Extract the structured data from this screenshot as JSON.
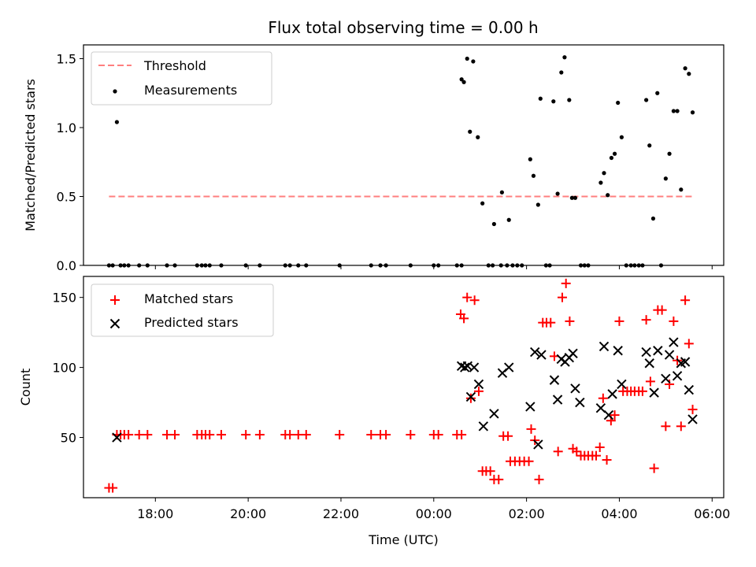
{
  "chart_data": {
    "title": "Flux total observing time = 0.00 h",
    "panels": [
      {
        "type": "scatter",
        "ylabel": "Matched/Predicted stars",
        "ylim": [
          0,
          1.6
        ],
        "yticks": [
          0,
          0.5,
          1.0,
          1.5
        ],
        "ytick_labels": [
          "0.0",
          "0.5",
          "1.0",
          "1.5"
        ],
        "legend_position": "upper-left",
        "threshold": {
          "name": "Threshold",
          "value": 0.5,
          "x_range": [
            17.0,
            29.6
          ],
          "color": "#ff7f7f",
          "style": "dashed"
        },
        "series": [
          {
            "name": "Measurements",
            "color": "#000000",
            "marker": "dot",
            "points": [
              [
                17.0,
                0
              ],
              [
                17.08,
                0
              ],
              [
                17.17,
                1.04
              ],
              [
                17.25,
                0
              ],
              [
                17.33,
                0
              ],
              [
                17.42,
                0
              ],
              [
                17.65,
                0
              ],
              [
                17.83,
                0
              ],
              [
                18.25,
                0
              ],
              [
                18.42,
                0
              ],
              [
                18.9,
                0
              ],
              [
                19.0,
                0
              ],
              [
                19.08,
                0
              ],
              [
                19.17,
                0
              ],
              [
                19.42,
                0
              ],
              [
                19.95,
                0
              ],
              [
                20.25,
                0
              ],
              [
                20.8,
                0
              ],
              [
                20.9,
                0
              ],
              [
                21.08,
                0
              ],
              [
                21.25,
                0
              ],
              [
                21.97,
                0
              ],
              [
                22.65,
                0
              ],
              [
                22.85,
                0
              ],
              [
                22.97,
                0
              ],
              [
                23.5,
                0
              ],
              [
                24.0,
                0
              ],
              [
                24.1,
                0
              ],
              [
                24.5,
                0
              ],
              [
                24.6,
                0
              ],
              [
                24.6,
                1.35
              ],
              [
                24.65,
                1.33
              ],
              [
                24.72,
                1.5
              ],
              [
                24.78,
                0.97
              ],
              [
                24.85,
                1.48
              ],
              [
                24.95,
                0.93
              ],
              [
                25.05,
                0.45
              ],
              [
                25.18,
                0
              ],
              [
                25.27,
                0
              ],
              [
                25.3,
                0.3
              ],
              [
                25.45,
                0
              ],
              [
                25.47,
                0.53
              ],
              [
                25.58,
                0
              ],
              [
                25.62,
                0.33
              ],
              [
                25.7,
                0
              ],
              [
                25.8,
                0
              ],
              [
                25.9,
                0
              ],
              [
                26.08,
                0.77
              ],
              [
                26.15,
                0.65
              ],
              [
                26.25,
                0.44
              ],
              [
                26.3,
                1.21
              ],
              [
                26.42,
                0
              ],
              [
                26.5,
                0
              ],
              [
                26.58,
                1.19
              ],
              [
                26.67,
                0.52
              ],
              [
                26.75,
                1.4
              ],
              [
                26.82,
                1.51
              ],
              [
                26.92,
                1.2
              ],
              [
                26.98,
                0.49
              ],
              [
                27.05,
                0.49
              ],
              [
                27.17,
                0
              ],
              [
                27.25,
                0
              ],
              [
                27.33,
                0
              ],
              [
                27.6,
                0.6
              ],
              [
                27.67,
                0.67
              ],
              [
                27.75,
                0.51
              ],
              [
                27.83,
                0.78
              ],
              [
                27.9,
                0.81
              ],
              [
                27.97,
                1.18
              ],
              [
                28.05,
                0.93
              ],
              [
                28.15,
                0
              ],
              [
                28.25,
                0
              ],
              [
                28.33,
                0
              ],
              [
                28.42,
                0
              ],
              [
                28.5,
                0
              ],
              [
                28.58,
                1.2
              ],
              [
                28.65,
                0.87
              ],
              [
                28.73,
                0.34
              ],
              [
                28.82,
                1.25
              ],
              [
                28.9,
                0
              ],
              [
                29.0,
                0.63
              ],
              [
                29.08,
                0.81
              ],
              [
                29.17,
                1.12
              ],
              [
                29.25,
                1.12
              ],
              [
                29.33,
                0.55
              ],
              [
                29.42,
                1.43
              ],
              [
                29.5,
                1.39
              ],
              [
                29.58,
                1.11
              ]
            ]
          }
        ]
      },
      {
        "type": "scatter",
        "ylabel": "Count",
        "xlabel": "Time (UTC)",
        "ylim": [
          7,
          165
        ],
        "yticks": [
          50,
          100,
          150
        ],
        "ytick_labels": [
          "50",
          "100",
          "150"
        ],
        "legend_position": "upper-left",
        "series": [
          {
            "name": "Matched stars",
            "color": "#ff0000",
            "marker": "plus",
            "points": [
              [
                17.0,
                14
              ],
              [
                17.08,
                14
              ],
              [
                17.17,
                52
              ],
              [
                17.25,
                52
              ],
              [
                17.33,
                52
              ],
              [
                17.42,
                52
              ],
              [
                17.65,
                52
              ],
              [
                17.83,
                52
              ],
              [
                18.25,
                52
              ],
              [
                18.42,
                52
              ],
              [
                18.9,
                52
              ],
              [
                19.0,
                52
              ],
              [
                19.08,
                52
              ],
              [
                19.17,
                52
              ],
              [
                19.42,
                52
              ],
              [
                19.95,
                52
              ],
              [
                20.25,
                52
              ],
              [
                20.8,
                52
              ],
              [
                20.9,
                52
              ],
              [
                21.08,
                52
              ],
              [
                21.25,
                52
              ],
              [
                21.97,
                52
              ],
              [
                22.65,
                52
              ],
              [
                22.85,
                52
              ],
              [
                22.97,
                52
              ],
              [
                23.5,
                52
              ],
              [
                24.0,
                52
              ],
              [
                24.1,
                52
              ],
              [
                24.5,
                52
              ],
              [
                24.6,
                52
              ],
              [
                24.58,
                138
              ],
              [
                24.65,
                135
              ],
              [
                24.72,
                150
              ],
              [
                24.8,
                78
              ],
              [
                24.88,
                148
              ],
              [
                24.97,
                83
              ],
              [
                25.05,
                26
              ],
              [
                25.13,
                26
              ],
              [
                25.22,
                26
              ],
              [
                25.3,
                20
              ],
              [
                25.4,
                20
              ],
              [
                25.5,
                51
              ],
              [
                25.6,
                51
              ],
              [
                25.65,
                33
              ],
              [
                25.75,
                33
              ],
              [
                25.85,
                33
              ],
              [
                25.95,
                33
              ],
              [
                26.05,
                33
              ],
              [
                26.1,
                56
              ],
              [
                26.18,
                48
              ],
              [
                26.27,
                20
              ],
              [
                26.35,
                132
              ],
              [
                26.43,
                132
              ],
              [
                26.52,
                132
              ],
              [
                26.6,
                108
              ],
              [
                26.68,
                40
              ],
              [
                26.77,
                150
              ],
              [
                26.85,
                160
              ],
              [
                26.93,
                133
              ],
              [
                27.0,
                42
              ],
              [
                27.08,
                40
              ],
              [
                27.17,
                37
              ],
              [
                27.25,
                37
              ],
              [
                27.33,
                37
              ],
              [
                27.42,
                37
              ],
              [
                27.5,
                37
              ],
              [
                27.58,
                43
              ],
              [
                27.65,
                78
              ],
              [
                27.73,
                34
              ],
              [
                27.82,
                62
              ],
              [
                27.9,
                66
              ],
              [
                28.0,
                133
              ],
              [
                28.08,
                83
              ],
              [
                28.17,
                83
              ],
              [
                28.25,
                83
              ],
              [
                28.33,
                83
              ],
              [
                28.42,
                83
              ],
              [
                28.5,
                83
              ],
              [
                28.58,
                134
              ],
              [
                28.67,
                90
              ],
              [
                28.75,
                28
              ],
              [
                28.83,
                141
              ],
              [
                28.92,
                141
              ],
              [
                29.0,
                58
              ],
              [
                29.08,
                88
              ],
              [
                29.17,
                133
              ],
              [
                29.25,
                105
              ],
              [
                29.33,
                58
              ],
              [
                29.42,
                148
              ],
              [
                29.5,
                117
              ],
              [
                29.58,
                70
              ]
            ]
          },
          {
            "name": "Predicted stars",
            "color": "#000000",
            "marker": "x",
            "points": [
              [
                17.17,
                50
              ],
              [
                24.6,
                101
              ],
              [
                24.67,
                100
              ],
              [
                24.73,
                101
              ],
              [
                24.8,
                79
              ],
              [
                24.87,
                100
              ],
              [
                24.97,
                88
              ],
              [
                25.07,
                58
              ],
              [
                25.3,
                67
              ],
              [
                25.48,
                96
              ],
              [
                25.62,
                100
              ],
              [
                26.08,
                72
              ],
              [
                26.18,
                111
              ],
              [
                26.25,
                45
              ],
              [
                26.32,
                109
              ],
              [
                26.6,
                91
              ],
              [
                26.67,
                77
              ],
              [
                26.75,
                106
              ],
              [
                26.83,
                104
              ],
              [
                26.92,
                107
              ],
              [
                27.0,
                110
              ],
              [
                27.05,
                85
              ],
              [
                27.15,
                75
              ],
              [
                27.6,
                71
              ],
              [
                27.67,
                115
              ],
              [
                27.77,
                66
              ],
              [
                27.85,
                81
              ],
              [
                27.97,
                112
              ],
              [
                28.05,
                88
              ],
              [
                28.58,
                111
              ],
              [
                28.65,
                103
              ],
              [
                28.75,
                82
              ],
              [
                28.83,
                112
              ],
              [
                29.0,
                92
              ],
              [
                29.08,
                109
              ],
              [
                29.17,
                118
              ],
              [
                29.25,
                94
              ],
              [
                29.33,
                103
              ],
              [
                29.42,
                104
              ],
              [
                29.5,
                84
              ],
              [
                29.58,
                63
              ]
            ]
          }
        ]
      }
    ],
    "xlim": [
      16.45,
      30.25
    ],
    "xticks": [
      18,
      20,
      22,
      24,
      26,
      28,
      30
    ],
    "xtick_labels": [
      "18:00",
      "20:00",
      "22:00",
      "00:00",
      "02:00",
      "04:00",
      "06:00"
    ]
  }
}
